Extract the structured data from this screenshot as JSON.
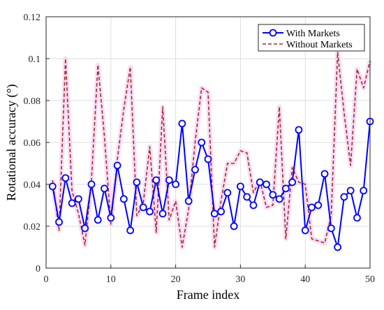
{
  "chart_data": {
    "type": "line",
    "xlabel": "Frame index",
    "ylabel": "Rotational accuracy (°)",
    "xlim": [
      0,
      50
    ],
    "ylim": [
      0,
      0.12
    ],
    "xticks": [
      0,
      10,
      20,
      30,
      40,
      50
    ],
    "yticks": [
      0,
      0.02,
      0.04,
      0.06,
      0.08,
      0.1,
      0.12
    ],
    "xtick_labels": [
      "0",
      "10",
      "20",
      "30",
      "40",
      "50"
    ],
    "ytick_labels": [
      "0",
      "0.02",
      "0.04",
      "0.06",
      "0.08",
      "0.1",
      "0.12"
    ],
    "grid": true,
    "legend_position": "top-right",
    "series": [
      {
        "name": "With Markets",
        "color": "#0000ff",
        "style": "solid-circle-markers",
        "x": [
          1,
          2,
          3,
          4,
          5,
          6,
          7,
          8,
          9,
          10,
          11,
          12,
          13,
          14,
          15,
          16,
          17,
          18,
          19,
          20,
          21,
          22,
          23,
          24,
          25,
          26,
          27,
          28,
          29,
          30,
          31,
          32,
          33,
          34,
          35,
          36,
          37,
          38,
          39,
          40,
          41,
          42,
          43,
          44,
          45,
          46,
          47,
          48,
          49,
          50
        ],
        "y": [
          0.039,
          0.022,
          0.043,
          0.031,
          0.033,
          0.019,
          0.04,
          0.023,
          0.038,
          0.024,
          0.049,
          0.033,
          0.018,
          0.041,
          0.029,
          0.027,
          0.042,
          0.026,
          0.042,
          0.04,
          0.069,
          0.032,
          0.047,
          0.06,
          0.052,
          0.026,
          0.027,
          0.036,
          0.02,
          0.039,
          0.034,
          0.03,
          0.041,
          0.04,
          0.035,
          0.033,
          0.038,
          0.041,
          0.066,
          0.018,
          0.029,
          0.03,
          0.045,
          0.019,
          0.01,
          0.034,
          0.037,
          0.024,
          0.037,
          0.07
        ]
      },
      {
        "name": "Without Markets",
        "color": "#a52a2a",
        "style": "dashed",
        "x": [
          1,
          2,
          3,
          4,
          5,
          6,
          7,
          8,
          9,
          10,
          11,
          12,
          13,
          14,
          15,
          16,
          17,
          18,
          19,
          20,
          21,
          22,
          23,
          24,
          25,
          26,
          27,
          28,
          29,
          30,
          31,
          32,
          33,
          34,
          35,
          36,
          37,
          38,
          39,
          40,
          41,
          42,
          43,
          44,
          45,
          46,
          47,
          48,
          49,
          50
        ],
        "y": [
          0.042,
          0.018,
          0.1,
          0.037,
          0.026,
          0.011,
          0.042,
          0.097,
          0.063,
          0.021,
          0.052,
          0.076,
          0.096,
          0.025,
          0.031,
          0.058,
          0.017,
          0.077,
          0.023,
          0.032,
          0.01,
          0.028,
          0.06,
          0.086,
          0.084,
          0.01,
          0.032,
          0.05,
          0.05,
          0.056,
          0.055,
          0.036,
          0.042,
          0.029,
          0.03,
          0.077,
          0.014,
          0.048,
          0.041,
          0.04,
          0.014,
          0.013,
          0.012,
          0.025,
          0.103,
          0.074,
          0.049,
          0.095,
          0.086,
          0.099
        ]
      }
    ]
  }
}
